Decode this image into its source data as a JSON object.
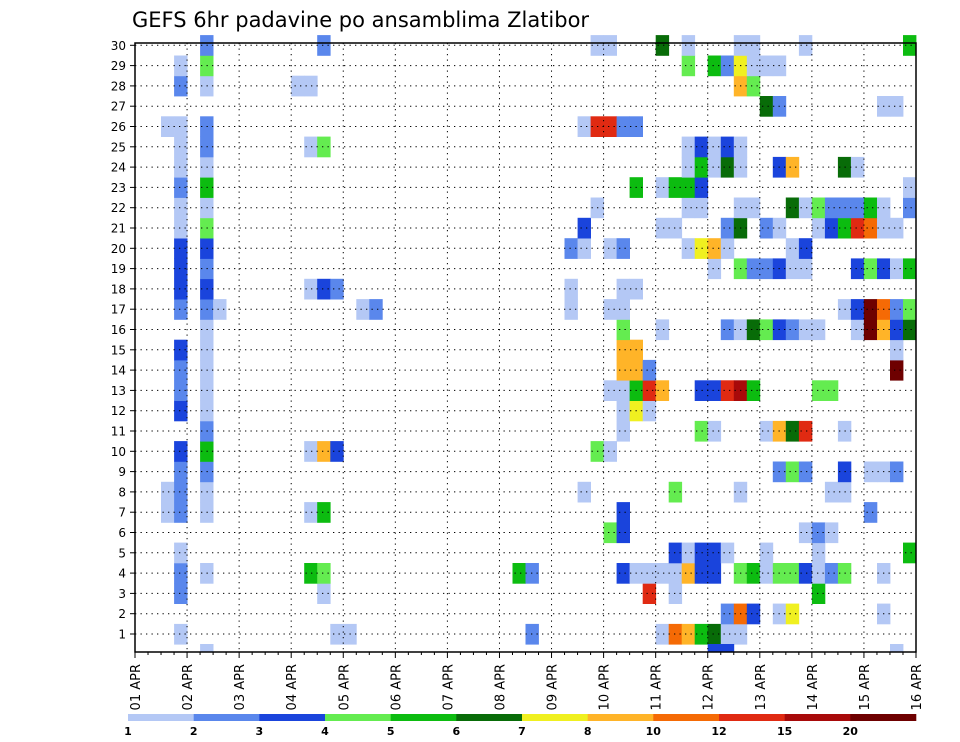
{
  "chart_data": {
    "type": "heatmap",
    "title": "GEFS 6hr padavine po ansamblima Zlatibor",
    "members": [
      1,
      2,
      3,
      4,
      5,
      6,
      7,
      8,
      9,
      10,
      11,
      12,
      13,
      14,
      15,
      16,
      17,
      18,
      19,
      20,
      21,
      22,
      23,
      24,
      25,
      26,
      27,
      28,
      29,
      30
    ],
    "x_labels": [
      "01 APR",
      "02 APR",
      "03 APR",
      "04 APR",
      "05 APR",
      "06 APR",
      "07 APR",
      "08 APR",
      "09 APR",
      "10 APR",
      "11 APR",
      "12 APR",
      "13 APR",
      "14 APR",
      "15 APR",
      "16 APR"
    ],
    "steps_per_day": 4,
    "n_steps": 60,
    "legend": {
      "levels": [
        1,
        2,
        3,
        4,
        5,
        6,
        7,
        8,
        10,
        12,
        15,
        20
      ],
      "colors": [
        "#b4c8f5",
        "#5a87ec",
        "#1a44dc",
        "#64ec50",
        "#0cbc10",
        "#086c08",
        "#f0f020",
        "#ffb428",
        "#f56a05",
        "#e02a12",
        "#a80a0a",
        "#6e0000"
      ]
    },
    "cells": [
      [
        1,
        4,
        1
      ],
      [
        1,
        16,
        1
      ],
      [
        1,
        17,
        1
      ],
      [
        1,
        31,
        2
      ],
      [
        1,
        41,
        1
      ],
      [
        1,
        42,
        9
      ],
      [
        1,
        43,
        8
      ],
      [
        1,
        44,
        5
      ],
      [
        1,
        45,
        6
      ],
      [
        1,
        46,
        1
      ],
      [
        1,
        47,
        1
      ],
      [
        2,
        46,
        2
      ],
      [
        2,
        47,
        9
      ],
      [
        2,
        48,
        3
      ],
      [
        2,
        50,
        1
      ],
      [
        2,
        51,
        7
      ],
      [
        2,
        58,
        1
      ],
      [
        3,
        4,
        2
      ],
      [
        3,
        15,
        1
      ],
      [
        3,
        40,
        10
      ],
      [
        3,
        42,
        1
      ],
      [
        3,
        53,
        5
      ],
      [
        4,
        4,
        2
      ],
      [
        4,
        6,
        1
      ],
      [
        4,
        14,
        5
      ],
      [
        4,
        15,
        4
      ],
      [
        4,
        30,
        5
      ],
      [
        4,
        31,
        2
      ],
      [
        4,
        38,
        3
      ],
      [
        4,
        39,
        1
      ],
      [
        4,
        40,
        1
      ],
      [
        4,
        41,
        1
      ],
      [
        4,
        42,
        1
      ],
      [
        4,
        43,
        8
      ],
      [
        4,
        44,
        3
      ],
      [
        4,
        45,
        3
      ],
      [
        4,
        47,
        4
      ],
      [
        4,
        48,
        5
      ],
      [
        4,
        49,
        1
      ],
      [
        4,
        50,
        4
      ],
      [
        4,
        51,
        4
      ],
      [
        4,
        52,
        3
      ],
      [
        4,
        53,
        1
      ],
      [
        4,
        54,
        2
      ],
      [
        4,
        55,
        4
      ],
      [
        4,
        58,
        1
      ],
      [
        5,
        4,
        1
      ],
      [
        5,
        42,
        3
      ],
      [
        5,
        43,
        1
      ],
      [
        5,
        44,
        3
      ],
      [
        5,
        45,
        3
      ],
      [
        5,
        46,
        1
      ],
      [
        5,
        49,
        1
      ],
      [
        5,
        53,
        1
      ],
      [
        5,
        60,
        5
      ],
      [
        6,
        37,
        4
      ],
      [
        6,
        38,
        3
      ],
      [
        6,
        52,
        1
      ],
      [
        6,
        53,
        2
      ],
      [
        6,
        54,
        1
      ],
      [
        7,
        3,
        1
      ],
      [
        7,
        4,
        2
      ],
      [
        7,
        6,
        1
      ],
      [
        7,
        14,
        1
      ],
      [
        7,
        15,
        5
      ],
      [
        7,
        38,
        3
      ],
      [
        7,
        57,
        2
      ],
      [
        8,
        3,
        1
      ],
      [
        8,
        4,
        2
      ],
      [
        8,
        6,
        1
      ],
      [
        8,
        35,
        1
      ],
      [
        8,
        42,
        4
      ],
      [
        8,
        47,
        1
      ],
      [
        8,
        54,
        1
      ],
      [
        8,
        55,
        1
      ],
      [
        9,
        4,
        2
      ],
      [
        9,
        6,
        2
      ],
      [
        9,
        50,
        2
      ],
      [
        9,
        51,
        4
      ],
      [
        9,
        52,
        2
      ],
      [
        9,
        55,
        3
      ],
      [
        9,
        57,
        1
      ],
      [
        9,
        58,
        1
      ],
      [
        9,
        59,
        2
      ],
      [
        10,
        4,
        3
      ],
      [
        10,
        6,
        5
      ],
      [
        10,
        14,
        1
      ],
      [
        10,
        15,
        8
      ],
      [
        10,
        16,
        3
      ],
      [
        10,
        36,
        4
      ],
      [
        10,
        37,
        1
      ],
      [
        11,
        6,
        2
      ],
      [
        11,
        38,
        1
      ],
      [
        11,
        44,
        4
      ],
      [
        11,
        45,
        1
      ],
      [
        11,
        49,
        1
      ],
      [
        11,
        50,
        8
      ],
      [
        11,
        51,
        6
      ],
      [
        11,
        52,
        10
      ],
      [
        11,
        55,
        1
      ],
      [
        12,
        4,
        3
      ],
      [
        12,
        6,
        1
      ],
      [
        12,
        38,
        1
      ],
      [
        12,
        39,
        7
      ],
      [
        12,
        40,
        1
      ],
      [
        13,
        4,
        2
      ],
      [
        13,
        6,
        1
      ],
      [
        13,
        37,
        1
      ],
      [
        13,
        38,
        1
      ],
      [
        13,
        39,
        5
      ],
      [
        13,
        40,
        10
      ],
      [
        13,
        41,
        8
      ],
      [
        13,
        44,
        3
      ],
      [
        13,
        45,
        3
      ],
      [
        13,
        46,
        10
      ],
      [
        13,
        47,
        11
      ],
      [
        13,
        48,
        5
      ],
      [
        13,
        53,
        4
      ],
      [
        13,
        54,
        4
      ],
      [
        14,
        4,
        2
      ],
      [
        14,
        6,
        1
      ],
      [
        14,
        38,
        8
      ],
      [
        14,
        39,
        8
      ],
      [
        14,
        40,
        2
      ],
      [
        14,
        59,
        12
      ],
      [
        15,
        4,
        3
      ],
      [
        15,
        6,
        1
      ],
      [
        15,
        38,
        8
      ],
      [
        15,
        39,
        8
      ],
      [
        15,
        59,
        1
      ],
      [
        16,
        6,
        1
      ],
      [
        16,
        38,
        4
      ],
      [
        16,
        41,
        1
      ],
      [
        16,
        46,
        2
      ],
      [
        16,
        47,
        1
      ],
      [
        16,
        48,
        6
      ],
      [
        16,
        49,
        4
      ],
      [
        16,
        50,
        3
      ],
      [
        16,
        51,
        2
      ],
      [
        16,
        52,
        1
      ],
      [
        16,
        53,
        1
      ],
      [
        16,
        56,
        1
      ],
      [
        16,
        57,
        12
      ],
      [
        16,
        58,
        8
      ],
      [
        16,
        59,
        3
      ],
      [
        16,
        60,
        6
      ],
      [
        17,
        4,
        2
      ],
      [
        17,
        6,
        2
      ],
      [
        17,
        7,
        1
      ],
      [
        17,
        18,
        1
      ],
      [
        17,
        19,
        2
      ],
      [
        17,
        34,
        1
      ],
      [
        17,
        37,
        1
      ],
      [
        17,
        38,
        1
      ],
      [
        17,
        55,
        1
      ],
      [
        17,
        56,
        3
      ],
      [
        17,
        57,
        12
      ],
      [
        17,
        58,
        9
      ],
      [
        17,
        59,
        2
      ],
      [
        17,
        60,
        4
      ],
      [
        18,
        4,
        3
      ],
      [
        18,
        6,
        3
      ],
      [
        18,
        14,
        1
      ],
      [
        18,
        15,
        3
      ],
      [
        18,
        16,
        2
      ],
      [
        18,
        34,
        1
      ],
      [
        18,
        38,
        1
      ],
      [
        18,
        39,
        1
      ],
      [
        19,
        4,
        3
      ],
      [
        19,
        6,
        2
      ],
      [
        19,
        45,
        1
      ],
      [
        19,
        47,
        4
      ],
      [
        19,
        48,
        2
      ],
      [
        19,
        49,
        2
      ],
      [
        19,
        50,
        3
      ],
      [
        19,
        51,
        1
      ],
      [
        19,
        52,
        1
      ],
      [
        19,
        56,
        3
      ],
      [
        19,
        57,
        4
      ],
      [
        19,
        58,
        3
      ],
      [
        19,
        59,
        1
      ],
      [
        19,
        60,
        5
      ],
      [
        20,
        4,
        3
      ],
      [
        20,
        6,
        3
      ],
      [
        20,
        34,
        2
      ],
      [
        20,
        35,
        1
      ],
      [
        20,
        37,
        1
      ],
      [
        20,
        38,
        2
      ],
      [
        20,
        43,
        1
      ],
      [
        20,
        44,
        7
      ],
      [
        20,
        45,
        8
      ],
      [
        20,
        46,
        1
      ],
      [
        20,
        51,
        1
      ],
      [
        20,
        52,
        3
      ],
      [
        21,
        4,
        1
      ],
      [
        21,
        6,
        4
      ],
      [
        21,
        35,
        3
      ],
      [
        21,
        41,
        1
      ],
      [
        21,
        42,
        1
      ],
      [
        21,
        46,
        2
      ],
      [
        21,
        47,
        6
      ],
      [
        21,
        49,
        2
      ],
      [
        21,
        50,
        1
      ],
      [
        21,
        53,
        1
      ],
      [
        21,
        54,
        3
      ],
      [
        21,
        55,
        5
      ],
      [
        21,
        56,
        10
      ],
      [
        21,
        57,
        9
      ],
      [
        21,
        58,
        1
      ],
      [
        21,
        59,
        1
      ],
      [
        22,
        4,
        1
      ],
      [
        22,
        6,
        1
      ],
      [
        22,
        36,
        1
      ],
      [
        22,
        43,
        1
      ],
      [
        22,
        44,
        1
      ],
      [
        22,
        47,
        1
      ],
      [
        22,
        48,
        1
      ],
      [
        22,
        51,
        6
      ],
      [
        22,
        52,
        1
      ],
      [
        22,
        53,
        4
      ],
      [
        22,
        54,
        2
      ],
      [
        22,
        55,
        2
      ],
      [
        22,
        56,
        2
      ],
      [
        22,
        57,
        5
      ],
      [
        22,
        58,
        1
      ],
      [
        22,
        60,
        2
      ],
      [
        23,
        4,
        2
      ],
      [
        23,
        6,
        5
      ],
      [
        23,
        39,
        5
      ],
      [
        23,
        41,
        1
      ],
      [
        23,
        42,
        5
      ],
      [
        23,
        43,
        5
      ],
      [
        23,
        44,
        3
      ],
      [
        23,
        60,
        1
      ],
      [
        24,
        4,
        1
      ],
      [
        24,
        6,
        1
      ],
      [
        24,
        43,
        1
      ],
      [
        24,
        44,
        5
      ],
      [
        24,
        45,
        1
      ],
      [
        24,
        46,
        6
      ],
      [
        24,
        47,
        1
      ],
      [
        24,
        50,
        3
      ],
      [
        24,
        51,
        8
      ],
      [
        24,
        55,
        6
      ],
      [
        24,
        56,
        1
      ],
      [
        25,
        4,
        1
      ],
      [
        25,
        6,
        2
      ],
      [
        25,
        14,
        1
      ],
      [
        25,
        15,
        4
      ],
      [
        25,
        43,
        1
      ],
      [
        25,
        44,
        3
      ],
      [
        25,
        45,
        1
      ],
      [
        25,
        46,
        3
      ],
      [
        25,
        47,
        1
      ],
      [
        26,
        3,
        1
      ],
      [
        26,
        4,
        1
      ],
      [
        26,
        6,
        2
      ],
      [
        26,
        35,
        1
      ],
      [
        26,
        36,
        10
      ],
      [
        26,
        37,
        10
      ],
      [
        26,
        38,
        2
      ],
      [
        26,
        39,
        2
      ],
      [
        27,
        49,
        6
      ],
      [
        27,
        50,
        2
      ],
      [
        27,
        58,
        1
      ],
      [
        27,
        59,
        1
      ],
      [
        28,
        4,
        2
      ],
      [
        28,
        6,
        1
      ],
      [
        28,
        13,
        1
      ],
      [
        28,
        14,
        1
      ],
      [
        28,
        47,
        8
      ],
      [
        28,
        48,
        4
      ],
      [
        29,
        4,
        1
      ],
      [
        29,
        6,
        4
      ],
      [
        29,
        43,
        4
      ],
      [
        29,
        45,
        5
      ],
      [
        29,
        46,
        2
      ],
      [
        29,
        47,
        7
      ],
      [
        29,
        48,
        1
      ],
      [
        29,
        49,
        1
      ],
      [
        29,
        50,
        1
      ],
      [
        30,
        6,
        2
      ],
      [
        30,
        15,
        2
      ],
      [
        30,
        36,
        1
      ],
      [
        30,
        37,
        1
      ],
      [
        30,
        41,
        6
      ],
      [
        30,
        43,
        1
      ],
      [
        30,
        47,
        1
      ],
      [
        30,
        48,
        1
      ],
      [
        30,
        52,
        1
      ],
      [
        30,
        60,
        5
      ]
    ],
    "extra_row_bottom": [
      [
        6,
        1
      ],
      [
        45,
        3
      ],
      [
        46,
        3
      ],
      [
        59,
        1
      ]
    ]
  }
}
